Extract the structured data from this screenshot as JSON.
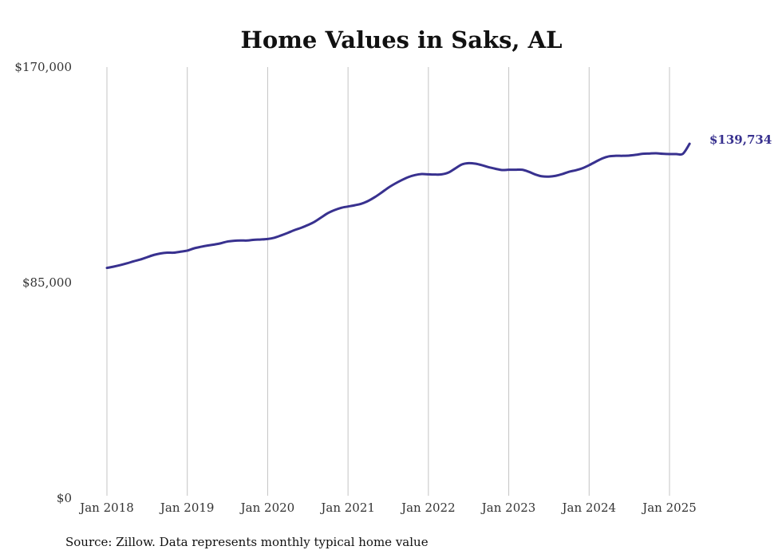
{
  "chart_data": {
    "type": "line",
    "title": "Home Values in Saks, AL",
    "xlabel": "",
    "ylabel": "",
    "x_ticks": [
      "Jan 2018",
      "Jan 2019",
      "Jan 2020",
      "Jan 2021",
      "Jan 2022",
      "Jan 2023",
      "Jan 2024",
      "Jan 2025"
    ],
    "y_ticks": [
      {
        "value": 0,
        "label": "$0"
      },
      {
        "value": 85000,
        "label": "$85,000"
      },
      {
        "value": 170000,
        "label": "$170,000"
      }
    ],
    "ylim": [
      0,
      170000
    ],
    "xlim": [
      "2018-01",
      "2025-04"
    ],
    "grid": "vertical",
    "line_color": "#38318f",
    "series": [
      {
        "x": [
          "2018-01",
          "2018-02",
          "2018-03",
          "2018-04",
          "2018-05",
          "2018-06",
          "2018-07",
          "2018-08",
          "2018-09",
          "2018-10",
          "2018-11",
          "2018-12",
          "2019-01",
          "2019-02",
          "2019-03",
          "2019-04",
          "2019-05",
          "2019-06",
          "2019-07",
          "2019-08",
          "2019-09",
          "2019-10",
          "2019-11",
          "2019-12",
          "2020-01",
          "2020-02",
          "2020-03",
          "2020-04",
          "2020-05",
          "2020-06",
          "2020-07",
          "2020-08",
          "2020-09",
          "2020-10",
          "2020-11",
          "2020-12",
          "2021-01",
          "2021-02",
          "2021-03",
          "2021-04",
          "2021-05",
          "2021-06",
          "2021-07",
          "2021-08",
          "2021-09",
          "2021-10",
          "2021-11",
          "2021-12",
          "2022-01",
          "2022-02",
          "2022-03",
          "2022-04",
          "2022-05",
          "2022-06",
          "2022-07",
          "2022-08",
          "2022-09",
          "2022-10",
          "2022-11",
          "2022-12",
          "2023-01",
          "2023-02",
          "2023-03",
          "2023-04",
          "2023-05",
          "2023-06",
          "2023-07",
          "2023-08",
          "2023-09",
          "2023-10",
          "2023-11",
          "2023-12",
          "2024-01",
          "2024-02",
          "2024-03",
          "2024-04",
          "2024-05",
          "2024-06",
          "2024-07",
          "2024-08",
          "2024-09",
          "2024-10",
          "2024-11",
          "2024-12",
          "2025-01",
          "2025-02",
          "2025-03",
          "2025-04"
        ],
        "values": [
          90800,
          91300,
          91900,
          92600,
          93400,
          94100,
          95000,
          95900,
          96500,
          96800,
          96800,
          97200,
          97600,
          98500,
          99100,
          99600,
          100000,
          100500,
          101200,
          101500,
          101600,
          101600,
          101900,
          102000,
          102200,
          102700,
          103600,
          104600,
          105700,
          106600,
          107700,
          109000,
          110700,
          112400,
          113600,
          114500,
          115000,
          115500,
          116100,
          117200,
          118700,
          120500,
          122400,
          124000,
          125400,
          126600,
          127400,
          127800,
          127700,
          127600,
          127700,
          128400,
          130000,
          131600,
          132100,
          131900,
          131300,
          130500,
          129900,
          129400,
          129500,
          129500,
          129500,
          128700,
          127600,
          126900,
          126800,
          127100,
          127800,
          128700,
          129300,
          130100,
          131300,
          132700,
          134000,
          134800,
          135000,
          135000,
          135100,
          135400,
          135800,
          135900,
          136000,
          135800,
          135700,
          135700,
          135800,
          139734
        ]
      }
    ],
    "end_label": "$139,734",
    "source": "Source: Zillow. Data represents monthly typical home value"
  }
}
